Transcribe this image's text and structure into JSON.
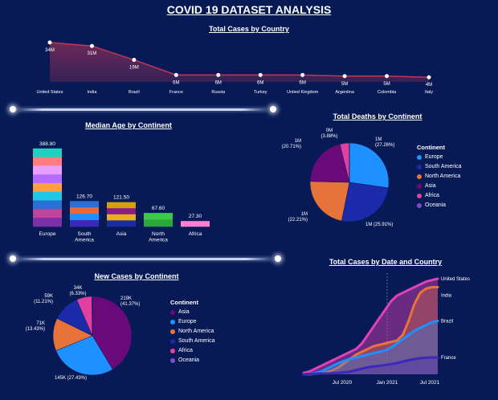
{
  "page_title": "COVID 19 DATASET ANALYSIS",
  "chart_data": [
    {
      "id": "cases_country",
      "type": "area",
      "title": "Total Cases by Country",
      "categories": [
        "United States",
        "India",
        "Brazil",
        "France",
        "Russia",
        "Turkey",
        "United Kingdom",
        "Argentina",
        "Colombia",
        "Italy"
      ],
      "values": [
        34,
        31,
        19,
        6,
        6,
        6,
        6,
        5,
        5,
        4
      ],
      "labels": [
        "34M",
        "31M",
        "19M",
        "6M",
        "6M",
        "6M",
        "6M",
        "5M",
        "5M",
        "4M"
      ],
      "ylim": [
        0,
        36
      ],
      "color": "#c0365a"
    },
    {
      "id": "median_age",
      "type": "bar",
      "title": "Median Age by Continent",
      "categories": [
        "Europe",
        "South America",
        "Asia",
        "North America",
        "Africa"
      ],
      "values": [
        388.8,
        126.7,
        121.5,
        67.6,
        27.3
      ],
      "labels": [
        "388.80",
        "126.70",
        "121.50",
        "67.60",
        "27.30"
      ],
      "ylim": [
        0,
        400
      ]
    },
    {
      "id": "deaths_continent",
      "type": "pie",
      "title": "Total Deaths by Continent",
      "legend_title": "Continent",
      "categories": [
        "Europe",
        "South America",
        "North America",
        "Asia",
        "Africa",
        "Oceania"
      ],
      "values": [
        27.26,
        25.91,
        22.21,
        20.71,
        3.88,
        0.03
      ],
      "labels": [
        "1M\n(27.26%)",
        "1M (25.91%)",
        "1M\n(22.21%)",
        "1M\n(20.71%)",
        "0M\n(3.88%)",
        ""
      ],
      "colors": [
        "#1e90ff",
        "#1a2aa8",
        "#e8733a",
        "#6a0a7a",
        "#e040a0",
        "#7b4fc8"
      ]
    },
    {
      "id": "new_cases_continent",
      "type": "pie",
      "title": "New Cases by Continent",
      "legend_title": "Continent",
      "categories": [
        "Asia",
        "Europe",
        "North America",
        "South America",
        "Africa",
        "Oceania"
      ],
      "values": [
        41.37,
        27.43,
        13.43,
        11.21,
        6.33,
        0.2
      ],
      "labels": [
        "219K\n(41.37%)",
        "145K (27.43%)",
        "71K\n(13.43%)",
        "59K\n(11.21%)",
        "34K\n(6.33%)",
        ""
      ],
      "colors": [
        "#6a0a7a",
        "#1e90ff",
        "#e8733a",
        "#1a2aa8",
        "#e040a0",
        "#7b4fc8"
      ]
    },
    {
      "id": "cases_date_country",
      "type": "area",
      "title": "Total Cases by Date and Country",
      "x_ticks": [
        "Jul 2020",
        "Jan 2021",
        "Jul 2021"
      ],
      "series": [
        {
          "name": "United States",
          "color": "#e040b8",
          "values": [
            0.5,
            1,
            2,
            3,
            4,
            5,
            6,
            7,
            8,
            9,
            11,
            14,
            17,
            20,
            23,
            26,
            28,
            29,
            30,
            31,
            32,
            33,
            33.5,
            34
          ]
        },
        {
          "name": "India",
          "color": "#e8733a",
          "values": [
            0,
            0,
            0.2,
            0.4,
            0.8,
            1.5,
            2.5,
            4,
            5.5,
            7,
            8,
            9,
            10,
            10.5,
            11,
            11.5,
            12,
            14,
            19,
            25,
            29,
            30.5,
            31,
            31
          ]
        },
        {
          "name": "Brazil",
          "color": "#1e90ff",
          "values": [
            0,
            0.1,
            0.5,
            1,
            2,
            3,
            4,
            4.8,
            5.5,
            6,
            6.5,
            7,
            7.5,
            8,
            8.5,
            9.5,
            11,
            12.5,
            14,
            15.5,
            16.5,
            17.5,
            18.5,
            19
          ]
        },
        {
          "name": "France",
          "color": "#3a28b8",
          "values": [
            0,
            0.1,
            0.2,
            0.3,
            0.3,
            0.4,
            0.5,
            0.7,
            1,
            1.5,
            2,
            2.5,
            2.8,
            3,
            3.3,
            3.6,
            4,
            4.5,
            5,
            5.4,
            5.7,
            5.9,
            6,
            6
          ]
        }
      ],
      "ylim": [
        0,
        36
      ]
    }
  ]
}
